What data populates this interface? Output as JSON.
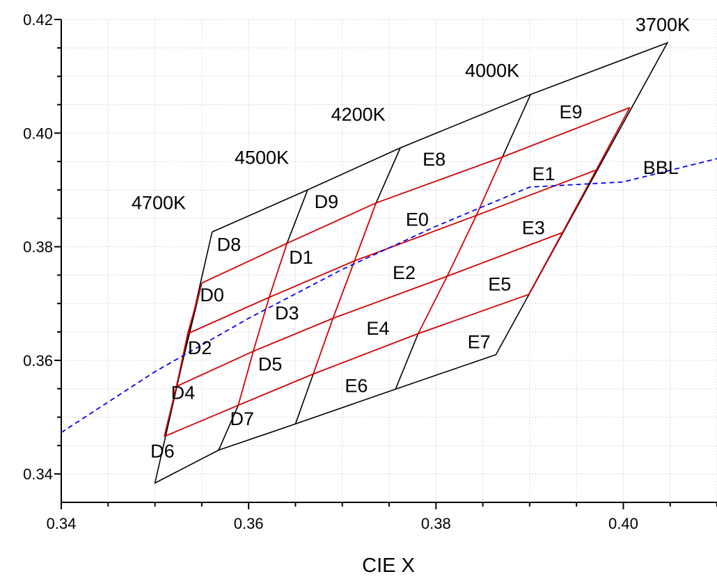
{
  "chart_data": {
    "type": "line",
    "xlabel": "CIE X",
    "ylabel": "",
    "xlim": [
      0.34,
      0.41
    ],
    "ylim": [
      0.335,
      0.42
    ],
    "x_ticks": [
      0.34,
      0.36,
      0.38,
      0.4
    ],
    "x_tick_labels": [
      "0.34",
      "0.36",
      "0.38",
      "0.40"
    ],
    "y_ticks": [
      0.34,
      0.36,
      0.38,
      0.4,
      0.42
    ],
    "y_tick_labels": [
      "0.34",
      "0.36",
      "0.38",
      "0.40",
      "0.42"
    ],
    "grid": true,
    "colors": {
      "outline": "#000000",
      "bin_lines": "#d40000",
      "bbl": "#0000ff"
    },
    "outer_outline": [
      [
        0.3561,
        0.3826
      ],
      [
        0.3663,
        0.39
      ],
      [
        0.3762,
        0.3974
      ],
      [
        0.3901,
        0.4068
      ],
      [
        0.4047,
        0.4159
      ],
      [
        0.3864,
        0.361
      ],
      [
        0.3758,
        0.355
      ],
      [
        0.365,
        0.3488
      ],
      [
        0.3568,
        0.3442
      ],
      [
        0.35,
        0.3384
      ],
      [
        0.3561,
        0.3826
      ]
    ],
    "black_boundaries": [
      [
        [
          0.3663,
          0.39
        ],
        [
          0.3641,
          0.3806
        ]
      ],
      [
        [
          0.3762,
          0.3974
        ],
        [
          0.3736,
          0.3877
        ]
      ],
      [
        [
          0.3901,
          0.4068
        ],
        [
          0.3871,
          0.3958
        ]
      ],
      [
        [
          0.3757,
          0.355
        ],
        [
          0.3781,
          0.3647
        ]
      ],
      [
        [
          0.365,
          0.3488
        ],
        [
          0.3669,
          0.3576
        ]
      ],
      [
        [
          0.3568,
          0.3442
        ],
        [
          0.3589,
          0.3521
        ]
      ],
      [
        [
          0.355,
          0.3736
        ],
        [
          0.351,
          0.3466
        ]
      ]
    ],
    "red_horizontals": [
      [
        [
          0.355,
          0.3736
        ],
        [
          0.3641,
          0.3806
        ],
        [
          0.3736,
          0.3877
        ],
        [
          0.3871,
          0.3958
        ],
        [
          0.4007,
          0.4045
        ]
      ],
      [
        [
          0.3535,
          0.3647
        ],
        [
          0.3622,
          0.3711
        ],
        [
          0.3713,
          0.3775
        ],
        [
          0.3843,
          0.3855
        ],
        [
          0.3971,
          0.3935
        ]
      ],
      [
        [
          0.3523,
          0.3554
        ],
        [
          0.3605,
          0.3616
        ],
        [
          0.369,
          0.3674
        ],
        [
          0.3812,
          0.3748
        ],
        [
          0.3935,
          0.3825
        ]
      ],
      [
        [
          0.351,
          0.3466
        ],
        [
          0.3589,
          0.3521
        ],
        [
          0.3669,
          0.3576
        ],
        [
          0.3781,
          0.3647
        ],
        [
          0.3899,
          0.3716
        ]
      ]
    ],
    "red_verticals": [
      [
        [
          0.355,
          0.3736
        ],
        [
          0.3535,
          0.3647
        ],
        [
          0.3523,
          0.3554
        ],
        [
          0.351,
          0.3466
        ]
      ],
      [
        [
          0.3641,
          0.3806
        ],
        [
          0.3622,
          0.3711
        ],
        [
          0.3605,
          0.3616
        ],
        [
          0.3589,
          0.3521
        ]
      ],
      [
        [
          0.3736,
          0.3877
        ],
        [
          0.3713,
          0.3775
        ],
        [
          0.369,
          0.3674
        ],
        [
          0.3669,
          0.3576
        ]
      ],
      [
        [
          0.3871,
          0.3958
        ],
        [
          0.3843,
          0.3855
        ],
        [
          0.3812,
          0.3748
        ],
        [
          0.3781,
          0.3647
        ]
      ],
      [
        [
          0.4007,
          0.4045
        ],
        [
          0.3971,
          0.3935
        ],
        [
          0.3935,
          0.3825
        ],
        [
          0.3899,
          0.3716
        ]
      ]
    ],
    "bbl_curve": [
      [
        0.34,
        0.3473
      ],
      [
        0.35,
        0.358
      ],
      [
        0.36,
        0.3674
      ],
      [
        0.37,
        0.376
      ],
      [
        0.38,
        0.3836
      ],
      [
        0.39,
        0.3905
      ],
      [
        0.4,
        0.3914
      ],
      [
        0.41,
        0.3955
      ]
    ],
    "bin_labels": [
      {
        "text": "D8",
        "x": 0.3579,
        "y": 0.3793
      },
      {
        "text": "D9",
        "x": 0.3683,
        "y": 0.3868
      },
      {
        "text": "E8",
        "x": 0.3798,
        "y": 0.3943
      },
      {
        "text": "E9",
        "x": 0.3944,
        "y": 0.4026
      },
      {
        "text": "D0",
        "x": 0.3561,
        "y": 0.3704
      },
      {
        "text": "D1",
        "x": 0.3656,
        "y": 0.377
      },
      {
        "text": "E0",
        "x": 0.378,
        "y": 0.3837
      },
      {
        "text": "E1",
        "x": 0.3915,
        "y": 0.3917
      },
      {
        "text": "D2",
        "x": 0.3548,
        "y": 0.3611
      },
      {
        "text": "D3",
        "x": 0.3641,
        "y": 0.3672
      },
      {
        "text": "E2",
        "x": 0.3766,
        "y": 0.3743
      },
      {
        "text": "E3",
        "x": 0.3904,
        "y": 0.3822
      },
      {
        "text": "D4",
        "x": 0.353,
        "y": 0.3532
      },
      {
        "text": "D5",
        "x": 0.3623,
        "y": 0.3582
      },
      {
        "text": "E4",
        "x": 0.3738,
        "y": 0.3645
      },
      {
        "text": "E5",
        "x": 0.3868,
        "y": 0.3723
      },
      {
        "text": "D6",
        "x": 0.3508,
        "y": 0.3429
      },
      {
        "text": "D7",
        "x": 0.3593,
        "y": 0.3486
      },
      {
        "text": "E6",
        "x": 0.3715,
        "y": 0.3544
      },
      {
        "text": "E7",
        "x": 0.3846,
        "y": 0.3621
      }
    ],
    "cct_labels": [
      {
        "text": "4700K",
        "x": 0.3504,
        "y": 0.3866
      },
      {
        "text": "4500K",
        "x": 0.3614,
        "y": 0.3946
      },
      {
        "text": "4200K",
        "x": 0.3717,
        "y": 0.4022
      },
      {
        "text": "4000K",
        "x": 0.386,
        "y": 0.4099
      },
      {
        "text": "3700K",
        "x": 0.4042,
        "y": 0.418
      },
      {
        "text": "BBL",
        "x": 0.404,
        "y": 0.3928
      }
    ]
  }
}
